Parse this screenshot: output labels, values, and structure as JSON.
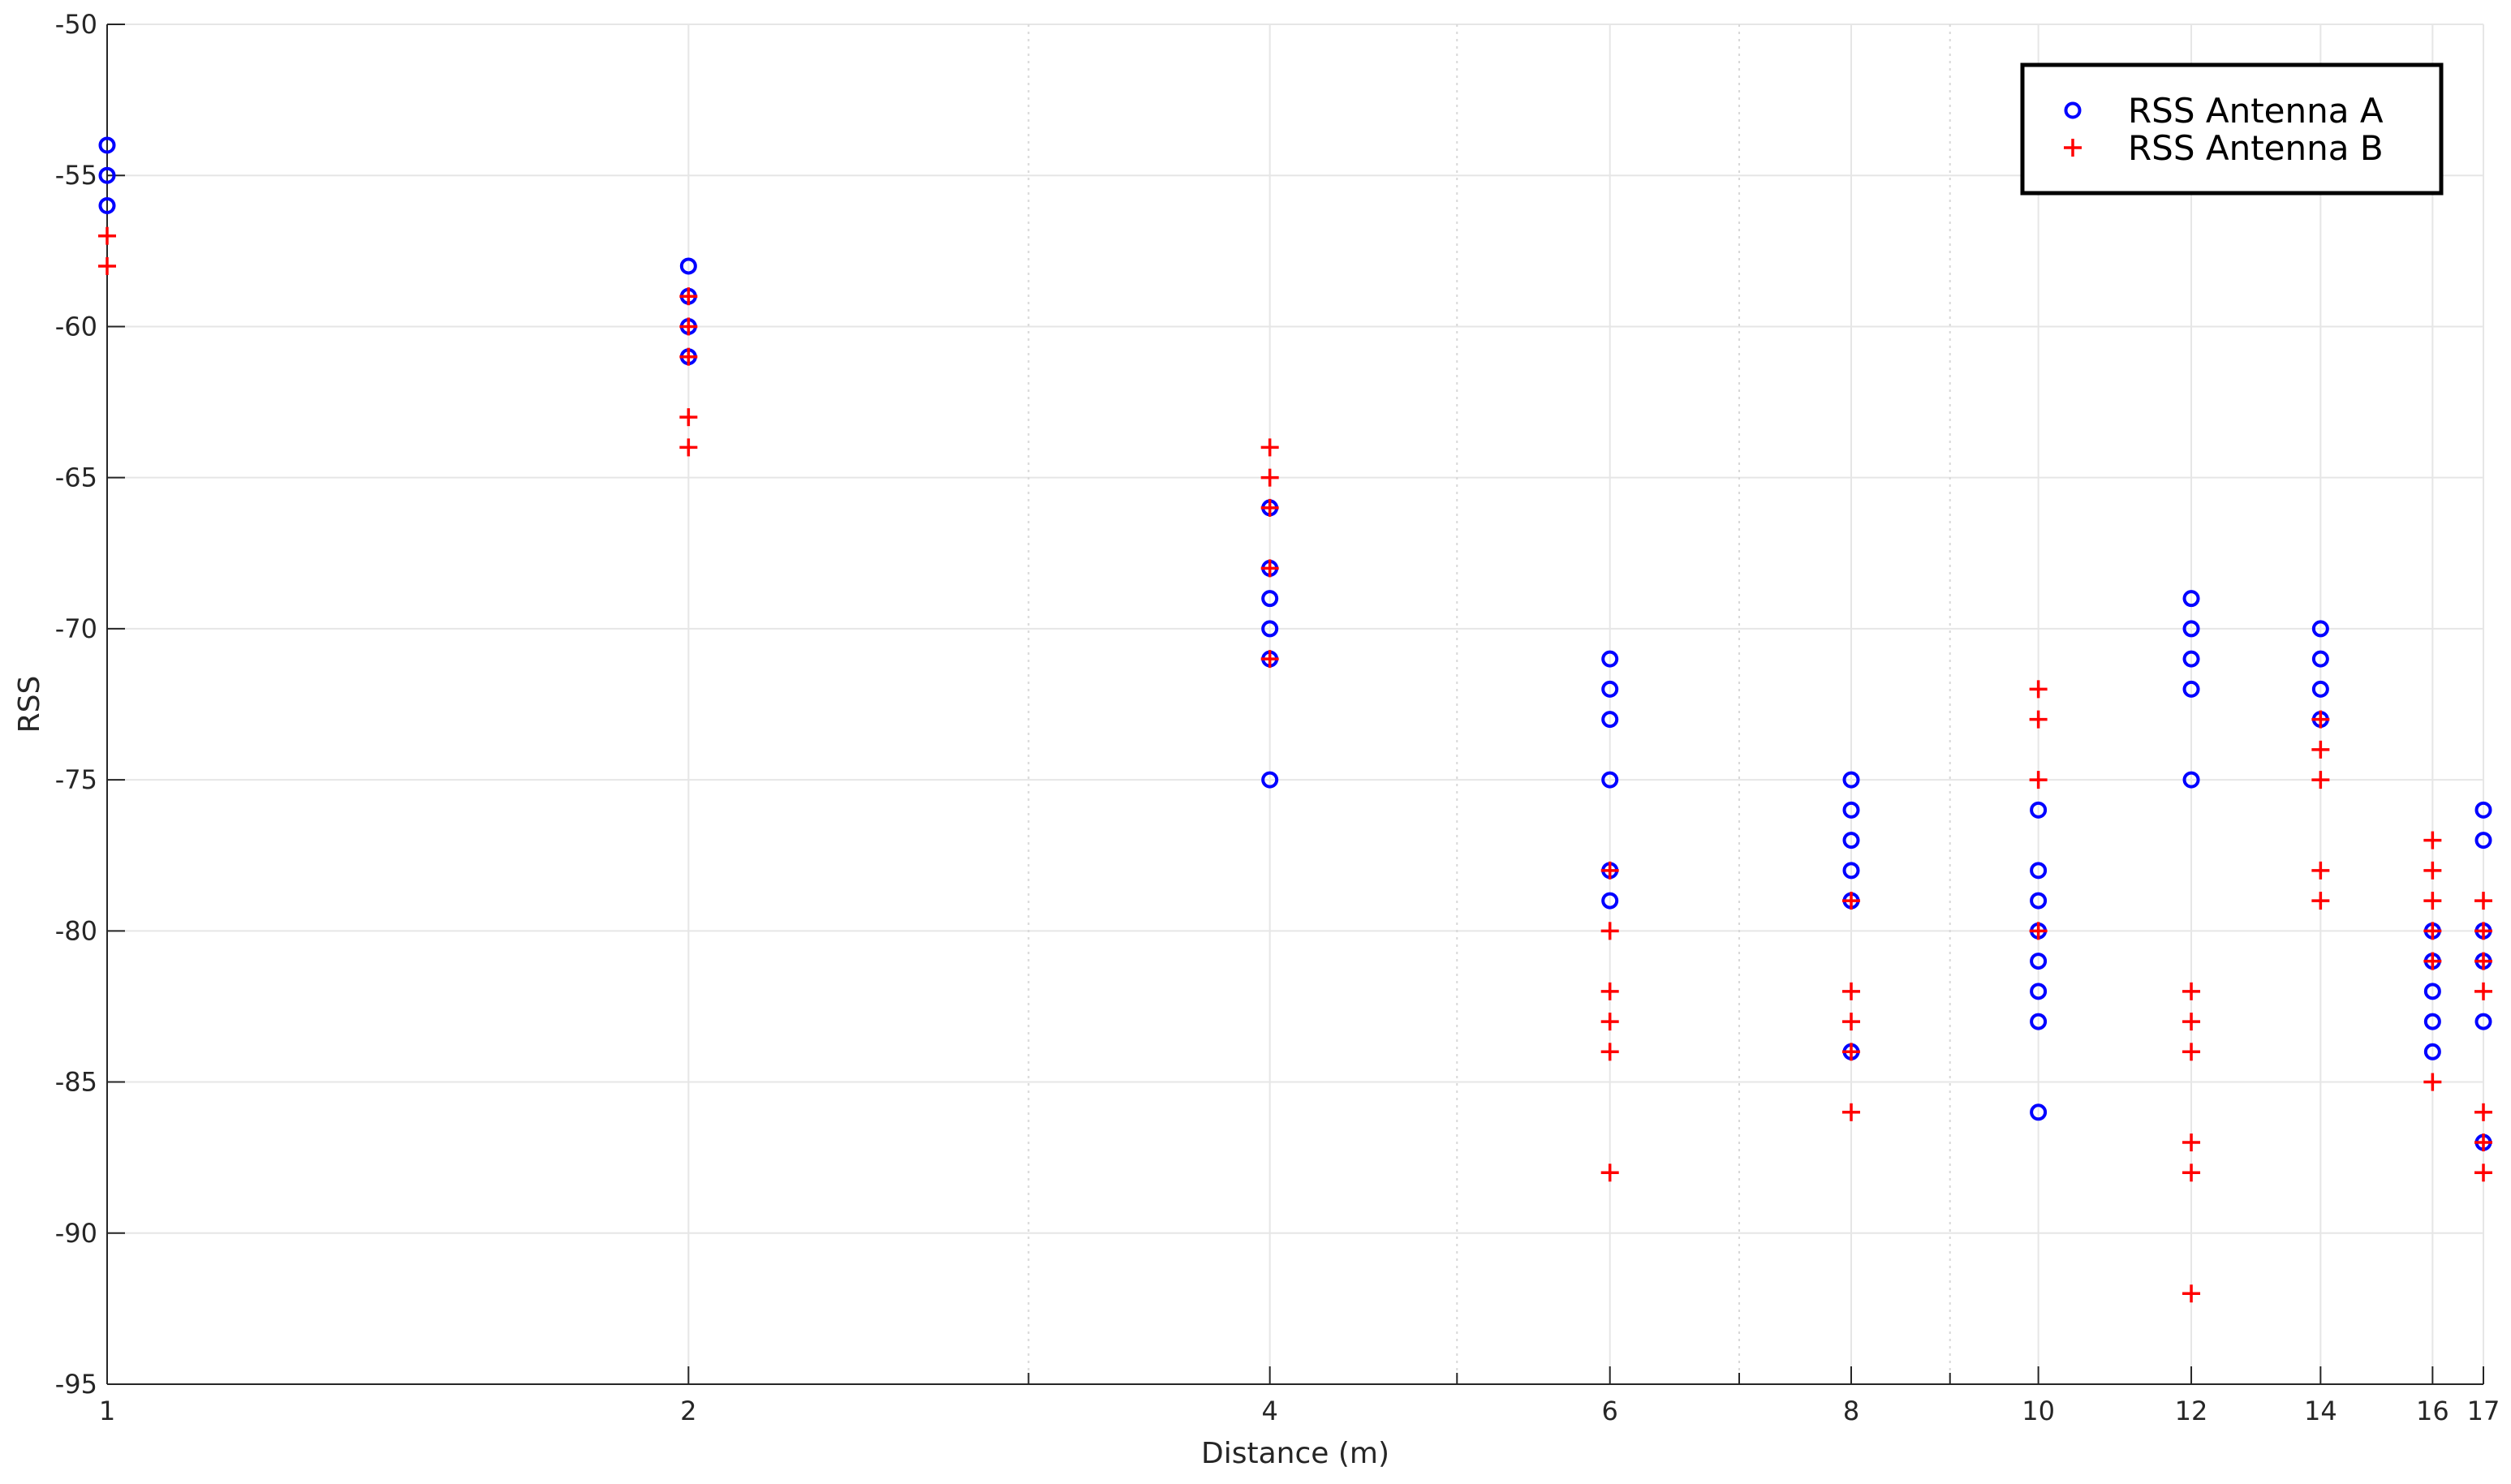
{
  "chart_data": {
    "type": "scatter",
    "xlabel": "Distance (m)",
    "ylabel": "RSS",
    "x_scale": "log",
    "xlim": [
      1,
      17
    ],
    "ylim": [
      -95,
      -50
    ],
    "x_ticks": [
      1,
      2,
      4,
      6,
      8,
      10,
      12,
      14,
      16,
      17
    ],
    "x_minor_grid": [
      3,
      5,
      7,
      9
    ],
    "y_ticks": [
      -50,
      -55,
      -60,
      -65,
      -70,
      -75,
      -80,
      -85,
      -90,
      -95
    ],
    "grid": true,
    "legend_position": "top-right",
    "series": [
      {
        "name": "RSS Antenna A",
        "marker": "circle",
        "color": "#0000ff",
        "points": [
          [
            1,
            -54
          ],
          [
            1,
            -55
          ],
          [
            1,
            -56
          ],
          [
            2,
            -58
          ],
          [
            2,
            -59
          ],
          [
            2,
            -60
          ],
          [
            2,
            -61
          ],
          [
            4,
            -66
          ],
          [
            4,
            -68
          ],
          [
            4,
            -69
          ],
          [
            4,
            -70
          ],
          [
            4,
            -71
          ],
          [
            4,
            -75
          ],
          [
            6,
            -71
          ],
          [
            6,
            -72
          ],
          [
            6,
            -73
          ],
          [
            6,
            -75
          ],
          [
            6,
            -78
          ],
          [
            6,
            -79
          ],
          [
            8,
            -75
          ],
          [
            8,
            -76
          ],
          [
            8,
            -77
          ],
          [
            8,
            -78
          ],
          [
            8,
            -79
          ],
          [
            8,
            -84
          ],
          [
            10,
            -76
          ],
          [
            10,
            -78
          ],
          [
            10,
            -79
          ],
          [
            10,
            -80
          ],
          [
            10,
            -81
          ],
          [
            10,
            -82
          ],
          [
            10,
            -83
          ],
          [
            10,
            -86
          ],
          [
            12,
            -69
          ],
          [
            12,
            -70
          ],
          [
            12,
            -71
          ],
          [
            12,
            -72
          ],
          [
            12,
            -75
          ],
          [
            14,
            -70
          ],
          [
            14,
            -71
          ],
          [
            14,
            -72
          ],
          [
            14,
            -73
          ],
          [
            16,
            -80
          ],
          [
            16,
            -81
          ],
          [
            16,
            -82
          ],
          [
            16,
            -83
          ],
          [
            16,
            -84
          ],
          [
            17,
            -76
          ],
          [
            17,
            -77
          ],
          [
            17,
            -80
          ],
          [
            17,
            -81
          ],
          [
            17,
            -83
          ],
          [
            17,
            -87
          ]
        ]
      },
      {
        "name": "RSS Antenna B",
        "marker": "plus",
        "color": "#ff0000",
        "points": [
          [
            1,
            -57
          ],
          [
            1,
            -58
          ],
          [
            2,
            -59
          ],
          [
            2,
            -60
          ],
          [
            2,
            -61
          ],
          [
            2,
            -63
          ],
          [
            2,
            -64
          ],
          [
            4,
            -64
          ],
          [
            4,
            -65
          ],
          [
            4,
            -66
          ],
          [
            4,
            -68
          ],
          [
            4,
            -71
          ],
          [
            6,
            -78
          ],
          [
            6,
            -80
          ],
          [
            6,
            -82
          ],
          [
            6,
            -83
          ],
          [
            6,
            -84
          ],
          [
            6,
            -88
          ],
          [
            8,
            -79
          ],
          [
            8,
            -82
          ],
          [
            8,
            -83
          ],
          [
            8,
            -84
          ],
          [
            8,
            -86
          ],
          [
            10,
            -72
          ],
          [
            10,
            -73
          ],
          [
            10,
            -75
          ],
          [
            10,
            -80
          ],
          [
            12,
            -82
          ],
          [
            12,
            -83
          ],
          [
            12,
            -84
          ],
          [
            12,
            -87
          ],
          [
            12,
            -88
          ],
          [
            12,
            -92
          ],
          [
            14,
            -73
          ],
          [
            14,
            -74
          ],
          [
            14,
            -75
          ],
          [
            14,
            -78
          ],
          [
            14,
            -79
          ],
          [
            16,
            -77
          ],
          [
            16,
            -78
          ],
          [
            16,
            -79
          ],
          [
            16,
            -80
          ],
          [
            16,
            -81
          ],
          [
            16,
            -85
          ],
          [
            17,
            -79
          ],
          [
            17,
            -80
          ],
          [
            17,
            -81
          ],
          [
            17,
            -82
          ],
          [
            17,
            -86
          ],
          [
            17,
            -87
          ],
          [
            17,
            -88
          ]
        ]
      }
    ]
  }
}
